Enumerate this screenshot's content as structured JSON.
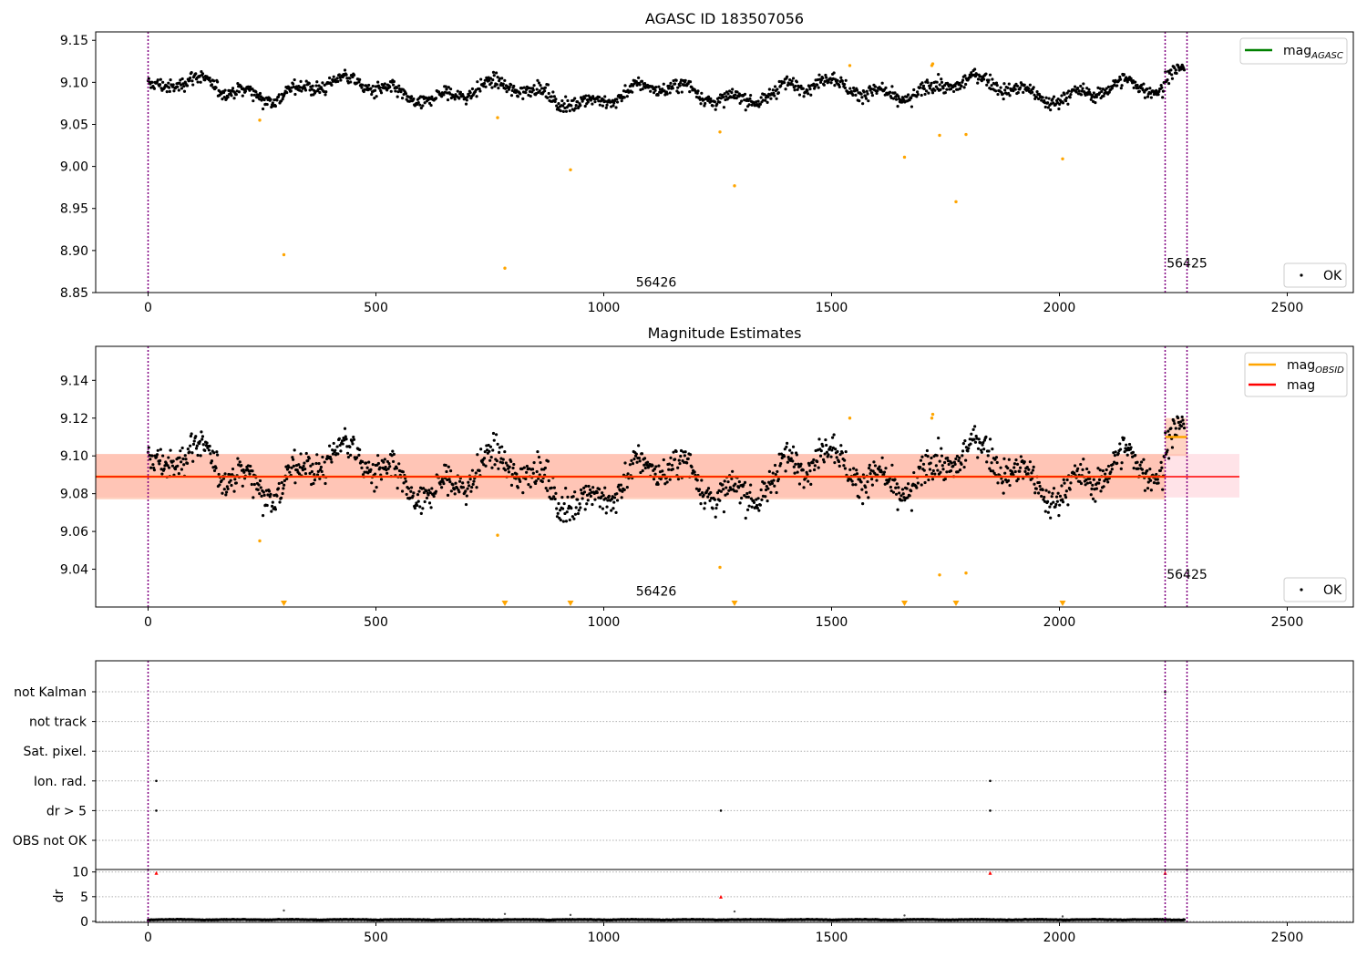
{
  "colors": {
    "ok_point": "#000000",
    "suspect_point": "#ffa500",
    "mag_agasc_line": "#008000",
    "mag_obsid_line": "#ffa500",
    "mag_line": "#ff0000",
    "band_mag": "#ffc0cb",
    "band_obsid": "#ffa07a",
    "time_marker": "#800080",
    "flag_point": "#000000",
    "dr_suspect": "#ff0000"
  },
  "chart_data": [
    {
      "type": "scatter",
      "title": "AGASC ID 183507056",
      "xlim": [
        -115,
        2645
      ],
      "ylim": [
        8.85,
        9.16
      ],
      "xticks": [
        "0",
        "500",
        "1000",
        "1500",
        "2000",
        "2500"
      ],
      "yticks": [
        "8.85",
        "8.90",
        "8.95",
        "9.00",
        "9.05",
        "9.10",
        "9.15"
      ],
      "legend": {
        "position": "top-right",
        "entries": [
          "mag_AGASC"
        ],
        "lower_position": "bottom-right",
        "lower_entries": [
          "OK"
        ]
      },
      "vlines_x": [
        0,
        2232,
        2280
      ],
      "annotations": [
        {
          "text": "56426",
          "x": 1115,
          "y": 8.857
        },
        {
          "text": "56425",
          "x": 2280,
          "y": 8.88
        }
      ],
      "series": [
        {
          "name": "OK",
          "generated": "1480 observations, index 0-2274; mag varies about 9.075-9.105 (range approx 9.05-9.133)"
        },
        {
          "points": [
            [
              245,
              9.055
            ],
            [
              298,
              8.895
            ],
            [
              767,
              9.058
            ],
            [
              783,
              8.879
            ],
            [
              927,
              8.996
            ],
            [
              1255,
              9.041
            ],
            [
              1287,
              8.977
            ],
            [
              1540,
              9.12
            ],
            [
              1660,
              9.011
            ],
            [
              1720,
              9.12
            ],
            [
              1722,
              9.122
            ],
            [
              1737,
              9.037
            ],
            [
              1773,
              8.958
            ],
            [
              1795,
              9.038
            ],
            [
              2007,
              9.009
            ]
          ]
        }
      ]
    },
    {
      "type": "scatter",
      "title": "Magnitude Estimates",
      "xlim": [
        -115,
        2645
      ],
      "ylim": [
        9.02,
        9.158
      ],
      "xticks": [
        "0",
        "500",
        "1000",
        "1500",
        "2000",
        "2500"
      ],
      "yticks": [
        "9.04",
        "9.06",
        "9.08",
        "9.10",
        "9.12",
        "9.14"
      ],
      "legend": {
        "position": "top-right",
        "entries": [
          "mag_OBSID",
          "mag"
        ],
        "lower_position": "bottom-right",
        "lower_entries": [
          "OK"
        ]
      },
      "vlines_x": [
        0,
        2232,
        2280
      ],
      "mag": {
        "value": 9.089,
        "band": [
          9.078,
          9.101
        ],
        "x_range": [
          -115,
          2395
        ]
      },
      "mag_obsid": [
        {
          "x": [
            -115,
            2232
          ],
          "value": 9.089,
          "band": [
            9.077,
            9.101
          ]
        },
        {
          "x": [
            2232,
            2280
          ],
          "value": 9.11,
          "band": [
            9.1,
            9.12
          ]
        }
      ],
      "annotations": [
        {
          "text": "56426",
          "x": 1115,
          "y": 9.026
        },
        {
          "text": "56425",
          "x": 2280,
          "y": 9.035
        }
      ],
      "lower_limit_markers_x": [
        298,
        783,
        927,
        1287,
        1660,
        1773,
        2007
      ],
      "series": [
        {
          "name": "OK",
          "generated": "1480 observations, same data as top panel"
        },
        {
          "points": [
            [
              245,
              9.055
            ],
            [
              767,
              9.058
            ],
            [
              1255,
              9.041
            ],
            [
              1540,
              9.12
            ],
            [
              1720,
              9.12
            ],
            [
              1722,
              9.122
            ],
            [
              1737,
              9.037
            ],
            [
              1795,
              9.038
            ]
          ]
        }
      ]
    },
    {
      "type": "scatter",
      "title": "",
      "xlim": [
        -115,
        2645
      ],
      "xticks": [
        "0",
        "500",
        "1000",
        "1500",
        "2000",
        "2500"
      ],
      "flag_rows": [
        "not Kalman",
        "not track",
        "Sat. pixel.",
        "Ion. rad.",
        "dr > 5",
        "OBS not OK"
      ],
      "flag_points": {
        "not Kalman": [
          2232
        ],
        "not track": [],
        "Sat. pixel.": [],
        "Ion. rad.": [
          18,
          1848
        ],
        "dr > 5": [
          18,
          1257,
          1848
        ],
        "OBS not OK": []
      },
      "vlines_x": [
        0,
        2232,
        2280
      ]
    },
    {
      "type": "scatter",
      "title": "",
      "ylabel": "dr",
      "xlim": [
        -115,
        2645
      ],
      "ylim": [
        -0.2,
        10.5
      ],
      "xticks": [
        "0",
        "500",
        "1000",
        "1500",
        "2000",
        "2500"
      ],
      "yticks": [
        "0",
        "5",
        "10"
      ],
      "vlines_x": [
        0,
        2232,
        2280
      ],
      "series": [
        {
          "name": "dr",
          "generated": "1480 observations, dr approx 0.1-0.8"
        },
        {
          "points": [
            [
              298,
              2.2
            ],
            [
              783,
              1.5
            ],
            [
              927,
              1.3
            ],
            [
              1287,
              2.0
            ],
            [
              1660,
              1.2
            ],
            [
              2007,
              1.0
            ]
          ]
        },
        {
          "points": [
            [
              18,
              9.8
            ],
            [
              1257,
              5.0
            ],
            [
              1848,
              9.8
            ],
            [
              2232,
              9.8
            ]
          ]
        }
      ]
    }
  ]
}
